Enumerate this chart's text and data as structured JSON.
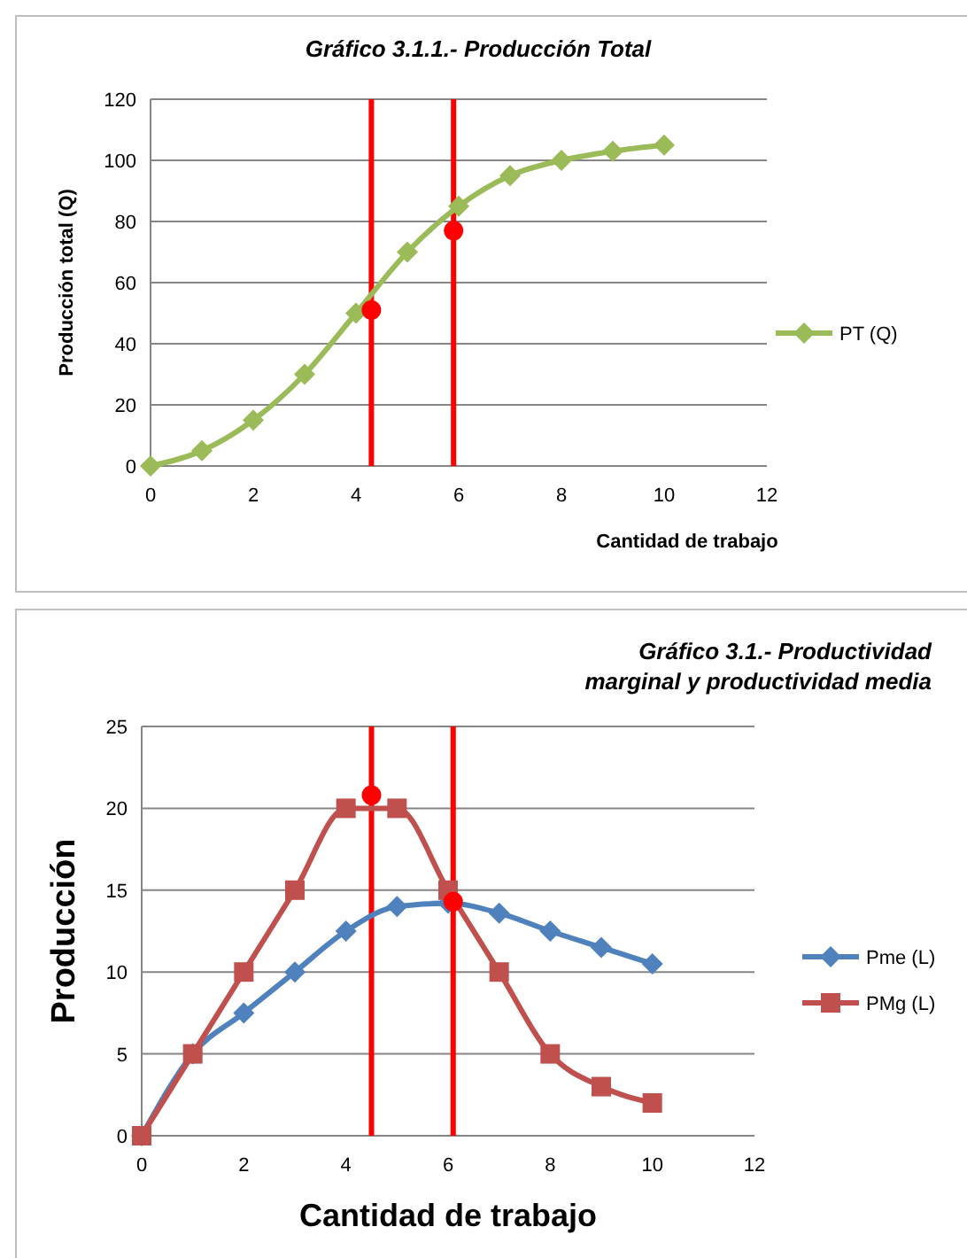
{
  "chart_data": [
    {
      "type": "line",
      "title": "Gráfico 3.1.1.- Producción Total",
      "xlabel": "Cantidad de trabajo",
      "ylabel": "Producción total (Q)",
      "x": [
        0,
        1,
        2,
        3,
        4,
        5,
        6,
        7,
        8,
        9,
        10
      ],
      "series": [
        {
          "name": "PT (Q)",
          "color": "#9bbb59",
          "marker": "diamond",
          "values": [
            0,
            5,
            15,
            30,
            50,
            70,
            85,
            95,
            100,
            103,
            105
          ]
        },
        {
          "type": "scatter",
          "color": "#ff0000",
          "marker": "circle",
          "x": [
            4.3,
            5.9
          ],
          "values": [
            51,
            77
          ]
        }
      ],
      "ref_lines": [
        {
          "axis": "x",
          "value": 4.3,
          "color": "#ff0000"
        },
        {
          "axis": "x",
          "value": 5.9,
          "color": "#ff0000"
        }
      ],
      "xlim": [
        0,
        12
      ],
      "xticks": [
        0,
        2,
        4,
        6,
        8,
        10,
        12
      ],
      "ylim": [
        0,
        120
      ],
      "yticks": [
        0,
        20,
        40,
        60,
        80,
        100,
        120
      ],
      "grid": "y",
      "legend": "right"
    },
    {
      "type": "line",
      "title": "Gráfico 3.1.- Productividad marginal y productividad media",
      "xlabel": "Cantidad de trabajo",
      "ylabel": "Producción",
      "x": [
        0,
        1,
        2,
        3,
        4,
        5,
        6,
        7,
        8,
        9,
        10
      ],
      "series": [
        {
          "name": "Pme (L)",
          "color": "#4f81bd",
          "marker": "diamond",
          "values": [
            0,
            5,
            7.5,
            10,
            12.5,
            14,
            14.2,
            13.6,
            12.5,
            11.5,
            10.5
          ]
        },
        {
          "name": "PMg (L)",
          "color": "#c0504d",
          "marker": "square",
          "values": [
            0,
            5,
            10,
            15,
            20,
            20,
            15,
            10,
            5,
            3,
            2
          ]
        },
        {
          "type": "scatter",
          "color": "#ff0000",
          "marker": "circle",
          "x": [
            4.5,
            6.1
          ],
          "values": [
            20.8,
            14.3
          ]
        }
      ],
      "ref_lines": [
        {
          "axis": "x",
          "value": 4.5,
          "color": "#ff0000"
        },
        {
          "axis": "x",
          "value": 6.1,
          "color": "#ff0000"
        }
      ],
      "xlim": [
        0,
        12
      ],
      "xticks": [
        0,
        2,
        4,
        6,
        8,
        10,
        12
      ],
      "ylim": [
        0,
        25
      ],
      "yticks": [
        0,
        5,
        10,
        15,
        20,
        25
      ],
      "grid": "y",
      "legend": "right"
    }
  ]
}
